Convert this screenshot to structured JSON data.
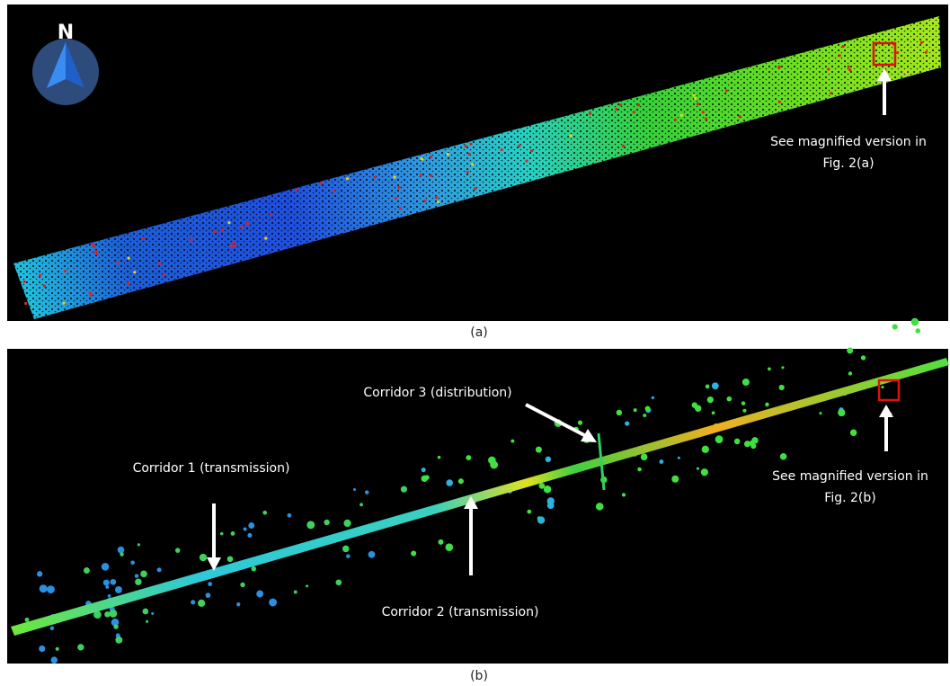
{
  "panels": [
    {
      "compass": "N",
      "annotations": [
        {
          "lines": [
            "See magnified version in",
            "Fig. 2(a)"
          ]
        }
      ],
      "caption": "(a)"
    },
    {
      "annotations": [
        {
          "lines": [
            "Corridor 3 (distribution)"
          ]
        },
        {
          "lines": [
            "Corridor 1 (transmission)"
          ]
        },
        {
          "lines": [
            "Corridor 2 (transmission)"
          ]
        },
        {
          "lines": [
            "See magnified version in",
            "Fig. 2(b)"
          ]
        }
      ],
      "caption": "(b)"
    }
  ]
}
